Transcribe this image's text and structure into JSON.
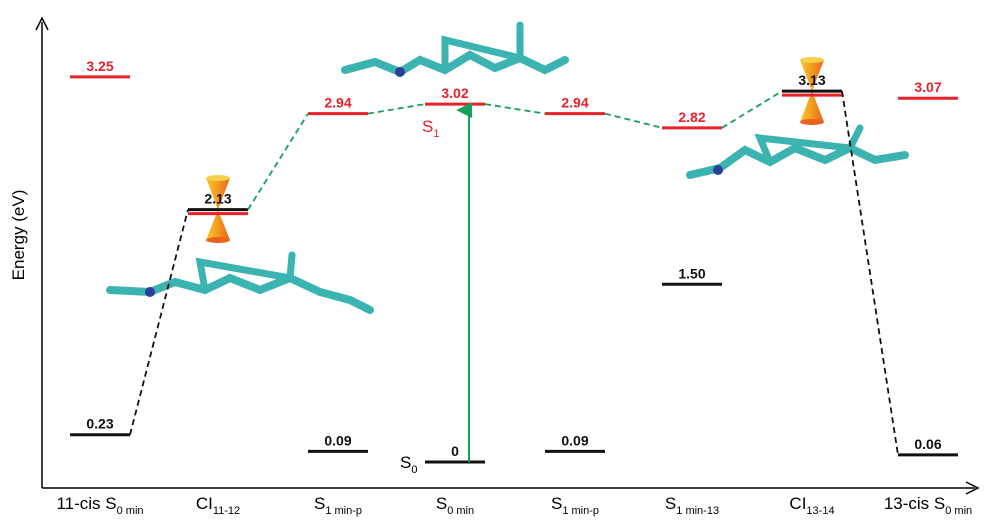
{
  "axis_label": "Energy (eV)",
  "columns": [
    {
      "label": "11-cis S",
      "sub": "0 min",
      "levels": [
        {
          "value": 3.25,
          "color": "#e8212b"
        },
        {
          "value": 0.23,
          "color": "#111111"
        }
      ]
    },
    {
      "label": "CI",
      "sub": "11-12",
      "levels": [
        {
          "value": 2.13,
          "color": [
            "#111111",
            "#e8212b"
          ]
        }
      ]
    },
    {
      "label": "S",
      "sub": "1 min-p",
      "levels": [
        {
          "value": 2.94,
          "color": "#e8212b"
        },
        {
          "value": 0.09,
          "color": "#111111"
        }
      ]
    },
    {
      "label": "S",
      "sub": "0 min",
      "levels": [
        {
          "value": 3.02,
          "color": "#e8212b"
        },
        {
          "value": 0,
          "color": "#111111"
        }
      ]
    },
    {
      "label": "S",
      "sub": "1 min-p",
      "levels": [
        {
          "value": 2.94,
          "color": "#e8212b"
        },
        {
          "value": 0.09,
          "color": "#111111"
        }
      ]
    },
    {
      "label": "S",
      "sub": "1 min-13",
      "levels": [
        {
          "value": 2.82,
          "color": "#e8212b"
        },
        {
          "value": 1.5,
          "label": "1.50",
          "color": "#111111"
        }
      ]
    },
    {
      "label": "CI",
      "sub": "13-14",
      "levels": [
        {
          "value": 3.13,
          "color": [
            "#111111",
            "#e8212b"
          ]
        }
      ]
    },
    {
      "label": "13-cis S",
      "sub": "0 min",
      "levels": [
        {
          "value": 3.07,
          "color": "#e8212b"
        },
        {
          "value": 0.06,
          "color": "#111111"
        }
      ]
    }
  ],
  "state_labels": [
    {
      "text": "S",
      "sub": "0"
    },
    {
      "text": "S",
      "sub": "1"
    }
  ]
}
